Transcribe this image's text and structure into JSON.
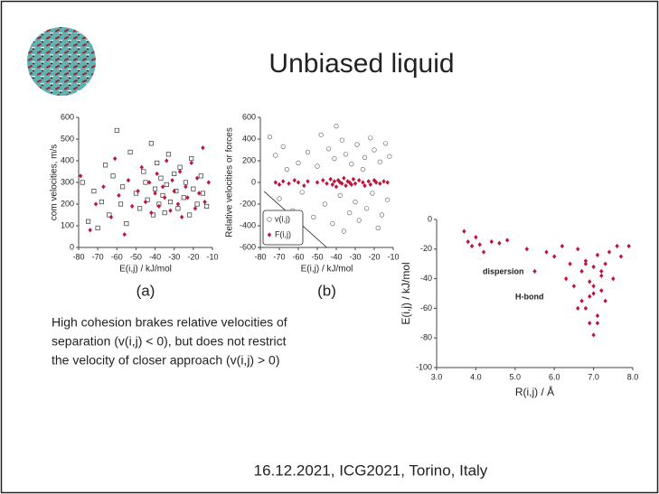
{
  "title": "Unbiased liquid",
  "caption": [
    "High cohesion brakes relative velocities of",
    "separation (v(i,j) < 0), but does not restrict",
    "the velocity of closer approach (v(i,j) > 0)"
  ],
  "footer": "16.12.2021, ICG2021, Torino, Italy",
  "chart_data": [
    {
      "type": "scatter",
      "panel_label": "(a)",
      "x_label": "E(i,j) / kJ/mol",
      "y_label": "com velocities, m/s",
      "xlim": [
        -80,
        -10
      ],
      "ylim": [
        0,
        600
      ],
      "xticks": [
        -80,
        -70,
        -60,
        -50,
        -40,
        -30,
        -20,
        -10
      ],
      "yticks": [
        0,
        100,
        200,
        300,
        400,
        500,
        600
      ],
      "series": [
        {
          "color": "#333333",
          "marker": "square",
          "x": [
            -78,
            -75,
            -72,
            -70,
            -68,
            -66,
            -64,
            -62,
            -60,
            -58,
            -57,
            -55,
            -53,
            -50,
            -48,
            -46,
            -45,
            -44,
            -42,
            -41,
            -40,
            -39,
            -38,
            -37,
            -36,
            -35,
            -34,
            -33,
            -32,
            -30,
            -29,
            -28,
            -27,
            -25,
            -24,
            -22,
            -21,
            -20,
            -18,
            -16,
            -15,
            -13
          ],
          "y": [
            300,
            120,
            260,
            90,
            210,
            380,
            150,
            330,
            540,
            200,
            280,
            110,
            440,
            250,
            180,
            350,
            300,
            220,
            480,
            150,
            270,
            390,
            200,
            320,
            240,
            160,
            290,
            430,
            210,
            340,
            260,
            180,
            370,
            230,
            300,
            150,
            410,
            270,
            200,
            330,
            250,
            190
          ]
        },
        {
          "color": "#c0143c",
          "marker": "diamond",
          "x": [
            -79,
            -74,
            -71,
            -67,
            -63,
            -61,
            -59,
            -56,
            -54,
            -52,
            -49,
            -47,
            -45,
            -43,
            -42,
            -40,
            -39,
            -38,
            -36,
            -35,
            -34,
            -32,
            -31,
            -30,
            -28,
            -27,
            -26,
            -24,
            -23,
            -21,
            -19,
            -18,
            -17,
            -15,
            -14,
            -12
          ],
          "y": [
            330,
            80,
            200,
            280,
            140,
            410,
            240,
            60,
            310,
            190,
            260,
            370,
            210,
            300,
            160,
            250,
            340,
            190,
            280,
            230,
            400,
            170,
            310,
            260,
            200,
            350,
            140,
            280,
            230,
            390,
            180,
            320,
            250,
            460,
            210,
            300
          ]
        }
      ]
    },
    {
      "type": "scatter",
      "panel_label": "(b)",
      "x_label": "E(i,j) / kJ/mol",
      "y_label": "Relative velocities or forces",
      "xlim": [
        -80,
        -10
      ],
      "ylim": [
        -600,
        600
      ],
      "xticks": [
        -80,
        -70,
        -60,
        -50,
        -40,
        -30,
        -20,
        -10
      ],
      "yticks": [
        -600,
        -400,
        -200,
        0,
        200,
        400,
        600
      ],
      "legend": "bottom-left",
      "reference_line": {
        "x": [
          -78,
          -45
        ],
        "y": [
          -83,
          -600
        ]
      },
      "series": [
        {
          "name": "v(i,j)",
          "color": "#555555",
          "marker": "circle",
          "x": [
            -75,
            -72,
            -70,
            -68,
            -66,
            -63,
            -60,
            -58,
            -55,
            -52,
            -50,
            -48,
            -46,
            -44,
            -42,
            -41,
            -40,
            -38,
            -37,
            -36,
            -35,
            -33,
            -32,
            -30,
            -29,
            -28,
            -26,
            -25,
            -24,
            -22,
            -21,
            -20,
            -18,
            -17,
            -16,
            -14,
            -13,
            -12
          ],
          "y": [
            420,
            250,
            -150,
            330,
            120,
            -260,
            180,
            -90,
            280,
            -320,
            150,
            440,
            -200,
            310,
            -380,
            220,
            520,
            -120,
            390,
            -450,
            260,
            -280,
            170,
            -180,
            350,
            -350,
            120,
            230,
            -240,
            410,
            -100,
            300,
            -420,
            190,
            -300,
            360,
            -160,
            240
          ]
        },
        {
          "name": "F(i,j)",
          "color": "#c0143c",
          "marker": "diamond",
          "x": [
            -72,
            -70,
            -68,
            -65,
            -62,
            -60,
            -57,
            -55,
            -50,
            -47,
            -45,
            -43,
            -42,
            -41,
            -40,
            -39,
            -38,
            -37,
            -36,
            -35,
            -34,
            -33,
            -32,
            -31,
            -30,
            -28,
            -26,
            -25,
            -23,
            -22,
            -20,
            -19,
            -17,
            -15,
            -13
          ],
          "y": [
            0,
            -20,
            10,
            -10,
            20,
            0,
            -30,
            10,
            0,
            20,
            -10,
            30,
            -20,
            10,
            -40,
            20,
            0,
            -10,
            40,
            -30,
            10,
            0,
            -20,
            30,
            -10,
            20,
            0,
            -30,
            10,
            -20,
            20,
            0,
            -10,
            10,
            0
          ]
        }
      ]
    },
    {
      "type": "scatter",
      "x_label": "R(i,j) / Å",
      "y_label": "E(i,j) / kJ/mol",
      "xlim": [
        3,
        8
      ],
      "ylim": [
        -100,
        0
      ],
      "xticks": [
        {
          "value": 3,
          "label": "3.0"
        },
        {
          "value": 4,
          "label": "4.0"
        },
        {
          "value": 5,
          "label": "5.0"
        },
        {
          "value": 6,
          "label": "6.0"
        },
        {
          "value": 7,
          "label": "7.0"
        },
        {
          "value": 8,
          "label": "8.0"
        }
      ],
      "yticks": [
        -100,
        -80,
        -60,
        -40,
        -20,
        0
      ],
      "annotations": [
        "dispersion",
        "H-bond"
      ],
      "series": [
        {
          "color": "#c0143c",
          "marker": "diamond",
          "x": [
            3.7,
            3.8,
            3.9,
            4.0,
            4.1,
            4.2,
            4.4,
            4.6,
            4.8,
            5.3,
            5.5,
            5.8,
            6.0,
            6.2,
            6.3,
            6.4,
            6.5,
            6.6,
            6.7,
            6.7,
            6.8,
            6.8,
            6.9,
            6.9,
            7.0,
            7.0,
            7.0,
            7.1,
            7.1,
            7.2,
            7.2,
            7.3,
            7.3,
            7.4,
            7.5,
            7.6,
            7.7,
            7.9,
            6.6,
            6.9,
            7.0,
            7.2,
            6.8,
            7.1
          ],
          "y": [
            -8,
            -15,
            -18,
            -12,
            -17,
            -22,
            -15,
            -16,
            -14,
            -20,
            -35,
            -22,
            -25,
            -18,
            -40,
            -30,
            -45,
            -20,
            -55,
            -35,
            -60,
            -28,
            -70,
            -42,
            -78,
            -50,
            -32,
            -65,
            -24,
            -48,
            -38,
            -30,
            -55,
            -22,
            -40,
            -18,
            -25,
            -18,
            -60,
            -52,
            -45,
            -35,
            -30,
            -70
          ]
        }
      ]
    }
  ]
}
